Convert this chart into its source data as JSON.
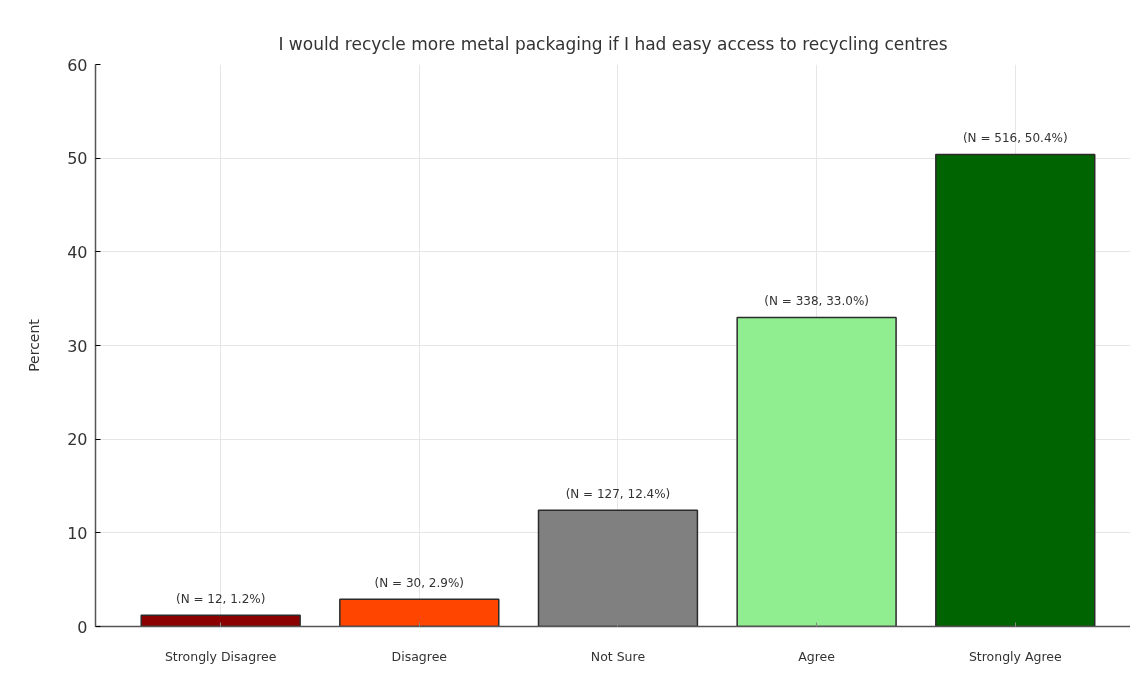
{
  "chart_data": {
    "type": "bar",
    "title": "I would recycle more metal packaging if I had easy access to recycling centres",
    "ylabel": "Percent",
    "categories": [
      "Strongly Disagree",
      "Disagree",
      "Not Sure",
      "Agree",
      "Strongly Agree"
    ],
    "values": [
      1.2,
      2.9,
      12.4,
      33.0,
      50.4
    ],
    "colors": [
      "#8b0000",
      "#ff4500",
      "#808080",
      "#90ee90",
      "#006400"
    ],
    "value_labels": [
      "(N = 12, 1.2%)",
      "(N = 30, 2.9%)",
      "(N = 127, 12.4%)",
      "(N = 338, 33.0%)",
      "(N = 516, 50.4%)"
    ],
    "ylim": [
      0,
      60
    ],
    "yticks": [
      0,
      10,
      20,
      30,
      40,
      50,
      60
    ],
    "grid": true
  }
}
